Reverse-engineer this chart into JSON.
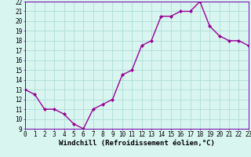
{
  "x": [
    0,
    1,
    2,
    3,
    4,
    5,
    6,
    7,
    8,
    9,
    10,
    11,
    12,
    13,
    14,
    15,
    16,
    17,
    18,
    19,
    20,
    21,
    22,
    23
  ],
  "y": [
    13,
    12.5,
    11,
    11,
    10.5,
    9.5,
    9,
    11,
    11.5,
    12,
    14.5,
    15,
    17.5,
    18,
    20.5,
    20.5,
    21,
    21,
    22,
    19.5,
    18.5,
    18,
    18,
    17.5
  ],
  "line_color": "#990099",
  "marker": "D",
  "marker_size": 2,
  "bg_color": "#d8f5f0",
  "grid_color": "#b0ddd8",
  "xlabel": "Windchill (Refroidissement éolien,°C)",
  "xlim": [
    0,
    23
  ],
  "ylim": [
    9,
    22
  ],
  "yticks": [
    9,
    10,
    11,
    12,
    13,
    14,
    15,
    16,
    17,
    18,
    19,
    20,
    21,
    22
  ],
  "xticks": [
    0,
    1,
    2,
    3,
    4,
    5,
    6,
    7,
    8,
    9,
    10,
    11,
    12,
    13,
    14,
    15,
    16,
    17,
    18,
    19,
    20,
    21,
    22,
    23
  ],
  "tick_fontsize": 5.5,
  "xlabel_fontsize": 6.5,
  "spine_color": "#7700aa",
  "line_width": 1.0
}
